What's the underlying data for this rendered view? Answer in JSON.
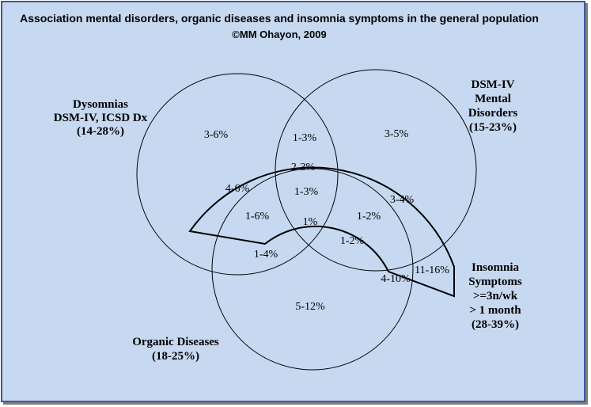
{
  "title": "Association mental disorders, organic diseases and insomnia symptoms in the general population",
  "subtitle": "©MM Ohayon, 2009",
  "sets": {
    "dysomnias": [
      "Dysomnias",
      "DSM-IV, ICSD Dx",
      "(14-28%)"
    ],
    "mental": [
      "DSM-IV",
      "Mental",
      "Disorders",
      "(15-23%)"
    ],
    "insomnia": [
      "Insomnia",
      "Symptoms",
      ">=3n/wk",
      "> 1 month",
      "(28-39%)"
    ],
    "organic": [
      "Organic Diseases",
      "(18-25%)"
    ]
  },
  "regions": {
    "dys_only": "3-6%",
    "dys_mental": "1-3%",
    "mental_only": "3-5%",
    "dys_mental_ins": "2-3%",
    "dys_ins": "4-6%",
    "mental_ins": "3-4%",
    "all_four": "1-3%",
    "dys_org_ins": "1-6%",
    "mental_org_ins": "1-2%",
    "dys_mental_org": "1%",
    "mental_org": "1-2%",
    "dys_org": "1-4%",
    "org_ins": "4-10%",
    "ins_only": "11-16%",
    "org_only": "5-12%"
  }
}
